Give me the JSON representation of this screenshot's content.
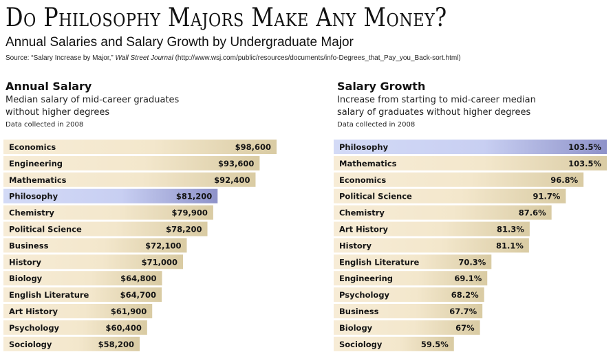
{
  "header": {
    "title": "Do Philosophy Majors Make Any Money?",
    "subtitle": "Annual Salaries and Salary Growth by Undergraduate Major",
    "source_prefix": "Source: “Salary Increase by Major,” ",
    "source_publication": "Wall Street Journal",
    "source_suffix": " (http://www.wsj.com/public/resources/documents/info-Degrees_that_Pay_you_Back-sort.html)"
  },
  "colors": {
    "bar_light": "#f7ecd6",
    "bar_dark": "#d9cba3",
    "highlight_light": "#d3daf6",
    "highlight_dark": "#8e92c9"
  },
  "chart_data": [
    {
      "type": "bar",
      "orientation": "horizontal",
      "title": "Annual Salary",
      "description": "Median salary of mid-career graduates without higher degrees",
      "note": "Data collected in 2008",
      "highlight": "Philosophy",
      "categories": [
        "Economics",
        "Engineering",
        "Mathematics",
        "Philosophy",
        "Chemistry",
        "Political Science",
        "Business",
        "History",
        "Biology",
        "English Literature",
        "Art History",
        "Psychology",
        "Sociology"
      ],
      "values": [
        98600,
        93600,
        92400,
        81200,
        79900,
        78200,
        72100,
        71000,
        64800,
        64700,
        61900,
        60400,
        58200
      ],
      "labels": [
        "$98,600",
        "$93,600",
        "$92,400",
        "$81,200",
        "$79,900",
        "$78,200",
        "$72,100",
        "$71,000",
        "$64,800",
        "$64,700",
        "$61,900",
        "$60,400",
        "$58,200"
      ],
      "xlim": [
        18000,
        98600
      ]
    },
    {
      "type": "bar",
      "orientation": "horizontal",
      "title": "Salary Growth",
      "description": "Increase from starting to mid-career median salary of graduates without higher degrees",
      "note": "Data collected in 2008",
      "highlight": "Philosophy",
      "categories": [
        "Philosophy",
        "Mathematics",
        "Economics",
        "Political Science",
        "Chemistry",
        "Art History",
        "History",
        "English Literature",
        "Engineering",
        "Psychology",
        "Business",
        "Biology",
        "Sociology"
      ],
      "values": [
        103.5,
        103.5,
        96.8,
        91.7,
        87.6,
        81.3,
        81.1,
        70.3,
        69.1,
        68.2,
        67.7,
        67,
        59.5
      ],
      "labels": [
        "103.5%",
        "103.5%",
        "96.8%",
        "91.7%",
        "87.6%",
        "81.3%",
        "81.1%",
        "70.3%",
        "69.1%",
        "68.2%",
        "67.7%",
        "67%",
        "59.5%"
      ],
      "xlim": [
        24.9,
        103.5
      ]
    }
  ]
}
